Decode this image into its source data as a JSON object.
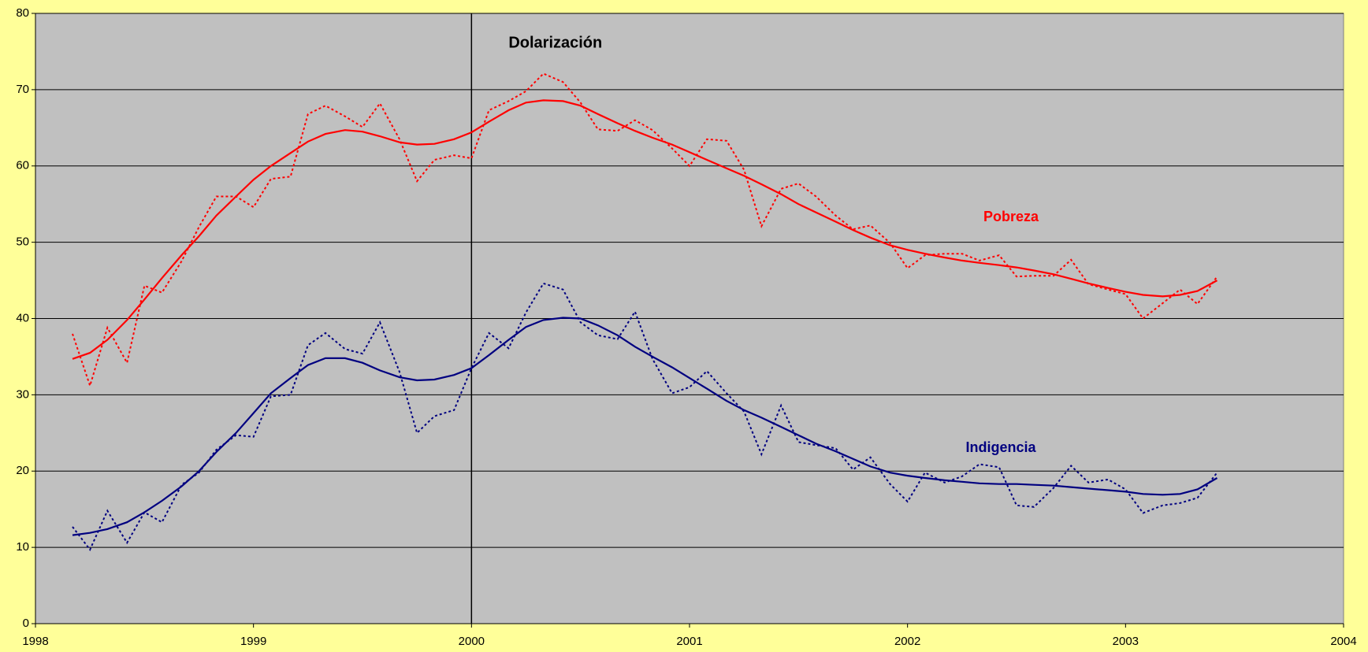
{
  "chart_data": {
    "type": "line",
    "x": [
      1998.17,
      1998.25,
      1998.33,
      1998.42,
      1998.5,
      1998.58,
      1998.67,
      1998.75,
      1998.83,
      1998.92,
      1999.0,
      1999.08,
      1999.17,
      1999.25,
      1999.33,
      1999.42,
      1999.5,
      1999.58,
      1999.67,
      1999.75,
      1999.83,
      1999.92,
      2000.0,
      2000.08,
      2000.17,
      2000.25,
      2000.33,
      2000.42,
      2000.5,
      2000.58,
      2000.67,
      2000.75,
      2000.83,
      2000.92,
      2001.0,
      2001.08,
      2001.17,
      2001.25,
      2001.33,
      2001.42,
      2001.5,
      2001.58,
      2001.67,
      2001.75,
      2001.83,
      2001.92,
      2002.0,
      2002.08,
      2002.17,
      2002.25,
      2002.33,
      2002.42,
      2002.5,
      2002.58,
      2002.67,
      2002.75,
      2002.83,
      2002.92,
      2003.0,
      2003.08,
      2003.17,
      2003.25,
      2003.33,
      2003.42
    ],
    "series": [
      {
        "color": "#ff0000",
        "style": "dotted",
        "values": [
          38,
          31.2,
          38.8,
          34.2,
          44.3,
          43.4,
          47.5,
          52,
          56,
          56,
          54.6,
          58.3,
          58.6,
          66.8,
          67.9,
          66.5,
          65.1,
          68.2,
          63.5,
          58,
          60.8,
          61.4,
          61,
          67.3,
          68.5,
          69.8,
          72.1,
          71,
          68.3,
          64.8,
          64.6,
          66,
          64.7,
          62.3,
          60,
          63.5,
          63.3,
          59.5,
          52.1,
          57,
          57.7,
          56,
          53.5,
          51.7,
          52.2,
          49.9,
          46.6,
          48.3,
          48.5,
          48.5,
          47.6,
          48.3,
          45.5,
          45.6,
          45.6,
          47.7,
          44.5,
          43.8,
          43.2,
          40,
          42,
          43.8,
          41.9,
          45.5
        ]
      },
      {
        "name": "Pobreza",
        "color": "#ff0000",
        "style": "solid",
        "values": [
          34.7,
          35.5,
          37.2,
          39.8,
          42.5,
          45.3,
          48.3,
          50.8,
          53.5,
          56,
          58.2,
          60,
          61.7,
          63.2,
          64.2,
          64.7,
          64.5,
          63.9,
          63.1,
          62.8,
          62.9,
          63.5,
          64.4,
          65.8,
          67.3,
          68.3,
          68.6,
          68.5,
          67.9,
          66.8,
          65.6,
          64.6,
          63.7,
          62.8,
          61.8,
          60.8,
          59.7,
          58.7,
          57.6,
          56.3,
          55,
          53.9,
          52.7,
          51.6,
          50.6,
          49.6,
          49,
          48.5,
          48,
          47.6,
          47.3,
          47,
          46.7,
          46.3,
          45.8,
          45.2,
          44.6,
          44,
          43.5,
          43.1,
          42.9,
          43.1,
          43.6,
          45
        ]
      },
      {
        "color": "#000080",
        "style": "dotted",
        "values": [
          12.7,
          9.7,
          14.8,
          10.6,
          14.6,
          13.3,
          18.2,
          19.8,
          22.8,
          24.7,
          24.5,
          29.8,
          30,
          36.5,
          38.1,
          36,
          35.4,
          39.5,
          33,
          25,
          27.2,
          28,
          33.5,
          38.1,
          36.1,
          40.8,
          44.6,
          43.8,
          39.5,
          37.8,
          37.3,
          40.9,
          34.7,
          30.2,
          31,
          33.1,
          30.2,
          27.8,
          22.2,
          28.6,
          23.8,
          23.4,
          23,
          20.2,
          21.8,
          18.3,
          16,
          19.8,
          18.5,
          19.3,
          20.9,
          20.5,
          15.5,
          15.3,
          17.8,
          20.7,
          18.5,
          18.9,
          17.6,
          14.5,
          15.5,
          15.8,
          16.5,
          19.8
        ]
      },
      {
        "name": "Indigencia",
        "color": "#000080",
        "style": "solid",
        "values": [
          11.6,
          11.9,
          12.4,
          13.3,
          14.6,
          16.1,
          18,
          20,
          22.5,
          25,
          27.6,
          30.2,
          32.2,
          33.9,
          34.8,
          34.8,
          34.2,
          33.2,
          32.3,
          31.9,
          32,
          32.6,
          33.5,
          35.2,
          37.2,
          38.9,
          39.8,
          40.1,
          40,
          39.1,
          37.8,
          36.3,
          35,
          33.6,
          32.2,
          30.8,
          29.2,
          28,
          27,
          25.8,
          24.7,
          23.6,
          22.6,
          21.6,
          20.6,
          19.8,
          19.4,
          19.1,
          18.8,
          18.6,
          18.4,
          18.3,
          18.3,
          18.2,
          18.1,
          17.9,
          17.7,
          17.5,
          17.3,
          17,
          16.9,
          17,
          17.6,
          19.1
        ]
      }
    ],
    "marker_line": {
      "x": 2000,
      "label": "Dolarización"
    },
    "xlim": [
      1998,
      2004
    ],
    "xticks": [
      1998,
      1999,
      2000,
      2001,
      2002,
      2003,
      2004
    ],
    "ylim": [
      0,
      80
    ],
    "yticks": [
      0,
      10,
      20,
      30,
      40,
      50,
      60,
      70,
      80
    ],
    "grid": true
  }
}
